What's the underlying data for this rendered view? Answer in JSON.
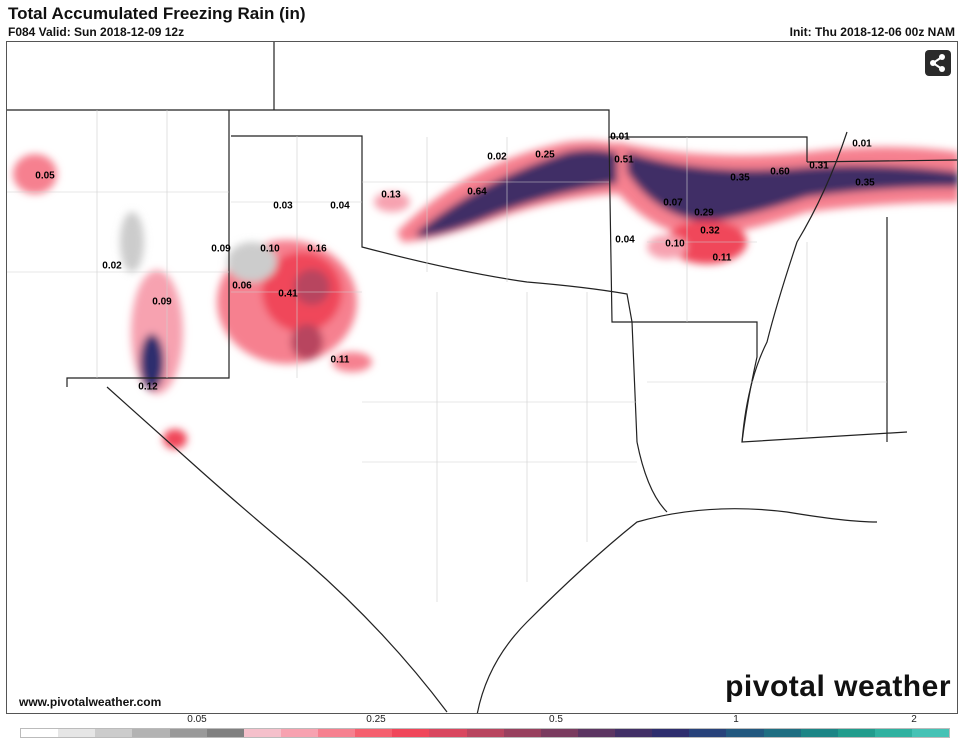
{
  "header": {
    "title": "Total Accumulated Freezing Rain (in)",
    "valid": "F084 Valid: Sun 2018-12-09 12z",
    "init": "Init: Thu 2018-12-06 00z NAM"
  },
  "share_icon": "share-icon",
  "watermark_url": "www.pivotalweather.com",
  "logo": "pivotal weather",
  "map_labels": [
    {
      "id": "l1",
      "text": "0.05"
    },
    {
      "id": "l2",
      "text": "0.02"
    },
    {
      "id": "l3",
      "text": "0.09"
    },
    {
      "id": "l4",
      "text": "0.12"
    },
    {
      "id": "l5",
      "text": "0.03"
    },
    {
      "id": "l6",
      "text": "0.04"
    },
    {
      "id": "l7",
      "text": "0.09"
    },
    {
      "id": "l8",
      "text": "0.10"
    },
    {
      "id": "l9",
      "text": "0.16"
    },
    {
      "id": "l10",
      "text": "0.06"
    },
    {
      "id": "l11",
      "text": "0.41"
    },
    {
      "id": "l12",
      "text": "0.11"
    },
    {
      "id": "l13",
      "text": "0.13"
    },
    {
      "id": "l14",
      "text": "0.02"
    },
    {
      "id": "l15",
      "text": "0.25"
    },
    {
      "id": "l16",
      "text": "0.64"
    },
    {
      "id": "l17",
      "text": "0.01"
    },
    {
      "id": "l18",
      "text": "0.51"
    },
    {
      "id": "l19",
      "text": "0.07"
    },
    {
      "id": "l20",
      "text": "0.29"
    },
    {
      "id": "l21",
      "text": "0.32"
    },
    {
      "id": "l22",
      "text": "0.04"
    },
    {
      "id": "l23",
      "text": "0.10"
    },
    {
      "id": "l24",
      "text": "0.11"
    },
    {
      "id": "l25",
      "text": "0.35"
    },
    {
      "id": "l26",
      "text": "0.60"
    },
    {
      "id": "l27",
      "text": "0.31"
    },
    {
      "id": "l28",
      "text": "0.01"
    },
    {
      "id": "l29",
      "text": "0.35"
    }
  ],
  "legend": {
    "ticks": [
      "0.05",
      "0.25",
      "0.5",
      "1",
      "2"
    ],
    "colors": [
      "#ffffff",
      "#e6e6e6",
      "#cccccc",
      "#b3b3b3",
      "#999999",
      "#808080",
      "#f5c0cb",
      "#f7a2b0",
      "#f6808f",
      "#f55f6e",
      "#f0465a",
      "#d9475f",
      "#b8455f",
      "#98405e",
      "#7a3b5f",
      "#5c3562",
      "#412f66",
      "#2e2e6e",
      "#27427a",
      "#22587f",
      "#1f6e82",
      "#1c8586",
      "#219c8d",
      "#2fb1a0",
      "#45c2b5"
    ]
  }
}
